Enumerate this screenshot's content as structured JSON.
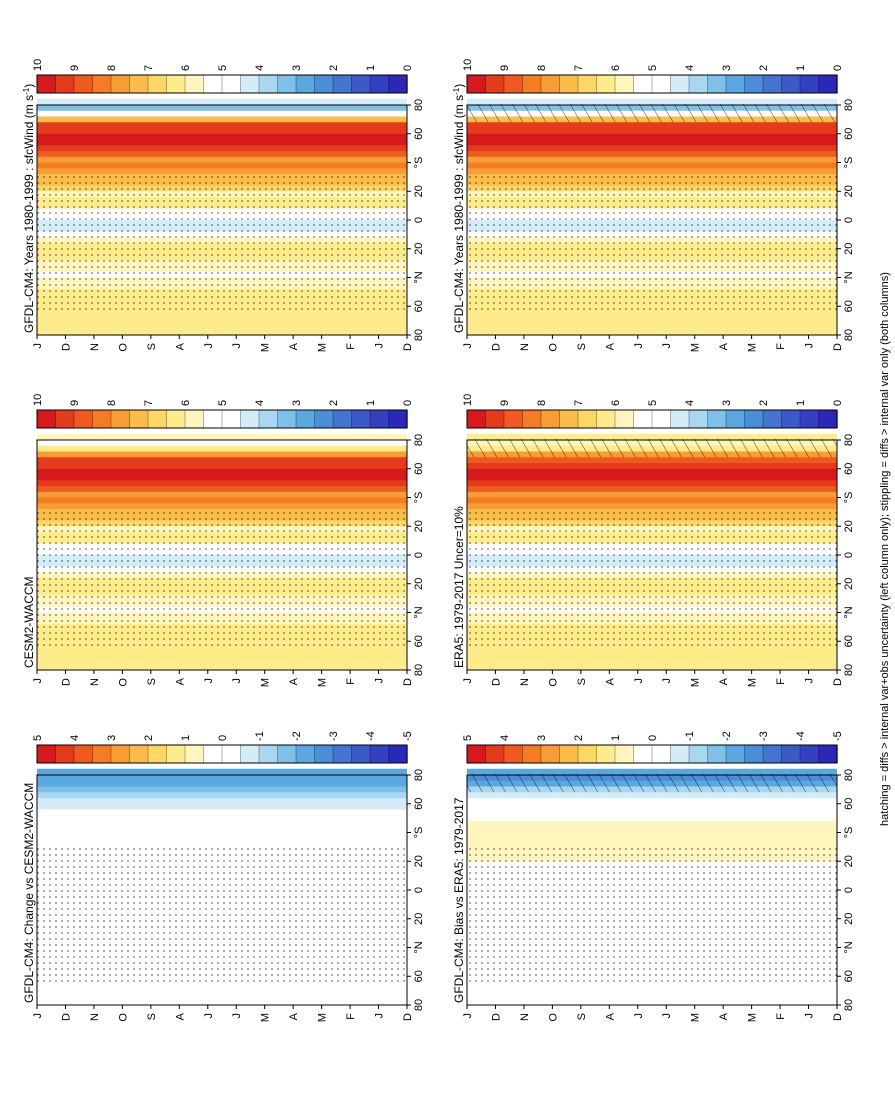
{
  "footnote": "hatching = diffs > internal var+obs uncertainty (left column only); stippling = diffs > internal var only (both columns)",
  "month_labels": [
    "D",
    "J",
    "F",
    "M",
    "A",
    "M",
    "J",
    "J",
    "A",
    "S",
    "O",
    "N",
    "D",
    "J"
  ],
  "lat_labels": [
    "80",
    "60",
    "°N",
    "20",
    "0",
    "20",
    "°S",
    "60",
    "80"
  ],
  "colorbar_abs": {
    "labels": [
      "10",
      "9",
      "8",
      "7",
      "6",
      "5",
      "4",
      "3",
      "2",
      "1",
      "0"
    ],
    "colors": [
      "#d7191c",
      "#e33b1c",
      "#ee5a20",
      "#f47c24",
      "#f89d33",
      "#fbbc4a",
      "#fdd766",
      "#feeb8a",
      "#fff5bd",
      "#ffffff",
      "#ffffff",
      "#d3ecf8",
      "#a8d8f0",
      "#7ec1e8",
      "#5aa8e0",
      "#4a8ed8",
      "#4274d0",
      "#3a5ac8",
      "#3340c0",
      "#2b28b8"
    ]
  },
  "colorbar_diff": {
    "labels": [
      "5",
      "4",
      "3",
      "2",
      "1",
      "0",
      "-1",
      "-2",
      "-3",
      "-4",
      "-5"
    ],
    "colors": [
      "#d7191c",
      "#e33b1c",
      "#ee5a20",
      "#f47c24",
      "#f89d33",
      "#fbbc4a",
      "#fdd766",
      "#feeb8a",
      "#fff5bd",
      "#ffffff",
      "#ffffff",
      "#d3ecf8",
      "#a8d8f0",
      "#7ec1e8",
      "#5aa8e0",
      "#4a8ed8",
      "#4274d0",
      "#3a5ac8",
      "#3340c0",
      "#2b28b8"
    ]
  },
  "chart_data": [
    {
      "type": "heatmap",
      "panel": "top-left",
      "title": "GFDL-CM4: Years 1980-1999 : sfcWind (m s",
      "title_sup": "-1",
      "title_end": ")",
      "x": "month (D..J)",
      "y": "latitude (80N..80S)",
      "clim": [
        0,
        10
      ],
      "bands": [
        {
          "lat": 62,
          "value": 6.5
        },
        {
          "lat": 40,
          "value": 5.5
        },
        {
          "lat": 22,
          "value": 6.5
        },
        {
          "lat": 5,
          "value": 4
        },
        {
          "lat": -10,
          "value": 6.5
        },
        {
          "lat": -40,
          "value": 8
        },
        {
          "lat": -55,
          "value": 10
        },
        {
          "lat": -65,
          "value": 9
        },
        {
          "lat": -75,
          "value": 3
        }
      ]
    },
    {
      "type": "heatmap",
      "panel": "top-right",
      "title": "GFDL-CM4: Years 1980-1999 : sfcWind (m s",
      "title_sup": "-1",
      "title_end": ")",
      "x": "month (D..J)",
      "y": "latitude (80N..80S)",
      "clim": [
        0,
        10
      ],
      "bands": [
        {
          "lat": 62,
          "value": 6.5
        },
        {
          "lat": 40,
          "value": 5.5
        },
        {
          "lat": 22,
          "value": 6.5
        },
        {
          "lat": 5,
          "value": 4
        },
        {
          "lat": -10,
          "value": 6.5
        },
        {
          "lat": -40,
          "value": 8
        },
        {
          "lat": -55,
          "value": 10
        },
        {
          "lat": -65,
          "value": 9
        },
        {
          "lat": -75,
          "value": 3
        }
      ]
    },
    {
      "type": "heatmap",
      "panel": "middle-left",
      "title": "ERA5: 1979-2017 Uncer=10%",
      "x": "month (D..J)",
      "y": "latitude (80N..80S)",
      "clim": [
        0,
        10
      ],
      "bands": [
        {
          "lat": 62,
          "value": 6.5
        },
        {
          "lat": 40,
          "value": 5.5
        },
        {
          "lat": 22,
          "value": 6.5
        },
        {
          "lat": 5,
          "value": 4
        },
        {
          "lat": -10,
          "value": 6.5
        },
        {
          "lat": -40,
          "value": 8
        },
        {
          "lat": -55,
          "value": 10
        },
        {
          "lat": -65,
          "value": 8.5
        },
        {
          "lat": -75,
          "value": 5.5
        }
      ]
    },
    {
      "type": "heatmap",
      "panel": "middle-right",
      "title": "CESM2-WACCM",
      "x": "month (D..J)",
      "y": "latitude (80N..80S)",
      "clim": [
        0,
        10
      ],
      "bands": [
        {
          "lat": 62,
          "value": 6.5
        },
        {
          "lat": 40,
          "value": 5.5
        },
        {
          "lat": 22,
          "value": 6.5
        },
        {
          "lat": 5,
          "value": 4
        },
        {
          "lat": -10,
          "value": 6.5
        },
        {
          "lat": -40,
          "value": 8
        },
        {
          "lat": -55,
          "value": 10
        },
        {
          "lat": -65,
          "value": 9
        },
        {
          "lat": -75,
          "value": 5
        }
      ]
    },
    {
      "type": "heatmap",
      "panel": "bottom-left",
      "title": "GFDL-CM4: Bias vs ERA5: 1979-2017",
      "x": "month (D..J)",
      "y": "latitude (80N..80S)",
      "clim": [
        -5,
        5
      ],
      "bands": [
        {
          "lat": 60,
          "value": 0
        },
        {
          "lat": 20,
          "value": 0.5
        },
        {
          "lat": 5,
          "value": 0
        },
        {
          "lat": -30,
          "value": 0.8
        },
        {
          "lat": -60,
          "value": 0.3
        },
        {
          "lat": -75,
          "value": -3
        }
      ]
    },
    {
      "type": "heatmap",
      "panel": "bottom-right",
      "title": "GFDL-CM4: Change vs CESM2-WACCM",
      "x": "month (D..J)",
      "y": "latitude (80N..80S)",
      "clim": [
        -5,
        5
      ],
      "bands": [
        {
          "lat": 60,
          "value": 0
        },
        {
          "lat": 20,
          "value": 0
        },
        {
          "lat": -30,
          "value": 0.3
        },
        {
          "lat": -60,
          "value": -0.5
        },
        {
          "lat": -75,
          "value": -2.5
        }
      ]
    }
  ]
}
